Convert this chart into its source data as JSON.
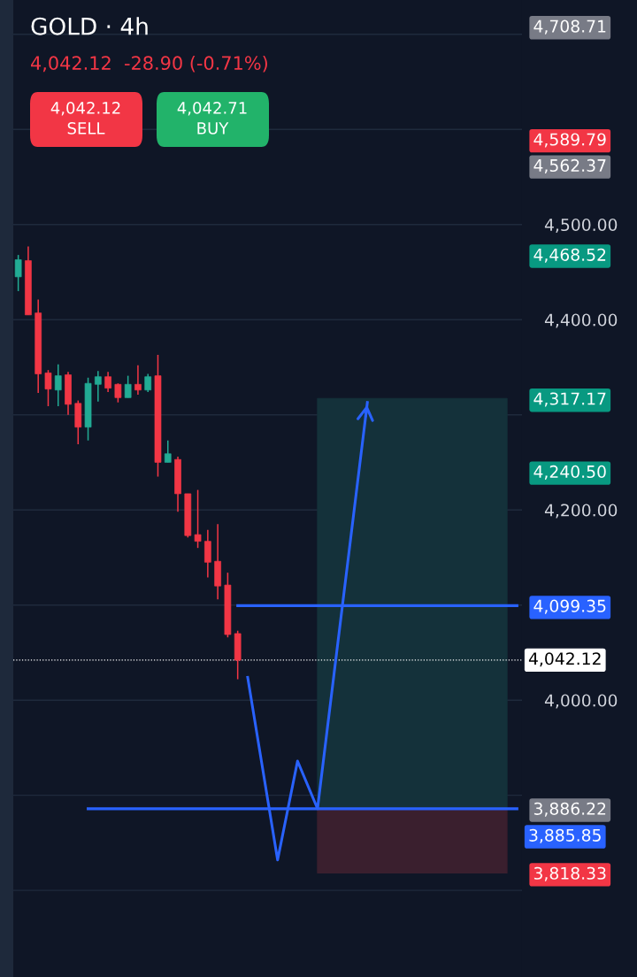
{
  "chart_data": {
    "type": "candlestick",
    "title": "GOLD · 4h",
    "subtitle": "4,042.12  -28.90 (-0.71%)",
    "annotations": [
      "4,042.12\nSELL",
      "4,042.71\nBUY",
      "3,885.85"
    ],
    "categories": [
      null,
      null,
      null,
      null,
      null,
      null,
      null,
      null,
      null,
      null,
      null,
      null,
      null,
      null,
      null,
      null,
      null,
      null,
      null,
      null,
      null,
      null,
      null,
      null,
      null,
      null,
      null,
      null,
      null,
      null,
      null,
      null,
      null,
      null,
      null,
      null,
      null,
      null,
      null,
      null,
      null,
      null,
      null,
      null,
      null,
      null,
      null,
      null,
      null,
      null,
      null
    ],
    "ohlc": [
      [
        4445,
        4468,
        4430,
        4463
      ],
      [
        4462,
        4477,
        4405,
        4405
      ],
      [
        4407,
        4421,
        4323,
        4343
      ],
      [
        4344,
        4347,
        4309,
        4327
      ],
      [
        4326,
        4353,
        4309,
        4341
      ],
      [
        4342,
        4345,
        4300,
        4311
      ],
      [
        4312,
        4315,
        4269,
        4287
      ],
      [
        4287,
        4339,
        4273,
        4333
      ],
      [
        4332,
        4346,
        4314,
        4340
      ],
      [
        4340,
        4345,
        4324,
        4328
      ],
      [
        4332,
        4333,
        4313,
        4318
      ],
      [
        4318,
        4341,
        4318,
        4332
      ],
      [
        4332,
        4352,
        4321,
        4326
      ],
      [
        4326,
        4343,
        4324,
        4340
      ],
      [
        4341,
        4363,
        4235,
        4250
      ],
      [
        4250,
        4273,
        4250,
        4259
      ],
      [
        4253,
        4256,
        4198,
        4217
      ],
      [
        4217,
        4217,
        4171,
        4173
      ],
      [
        4174,
        4221,
        4160,
        4167
      ],
      [
        4167,
        4179,
        4129,
        4145
      ],
      [
        4146,
        4185,
        4106,
        4120
      ],
      [
        4121,
        4134,
        4066,
        4069
      ],
      [
        4070,
        4073,
        4022,
        4042
      ],
      null,
      null,
      null,
      null,
      null,
      null,
      null,
      null,
      null,
      null,
      null,
      null,
      null,
      null,
      null,
      null,
      null,
      null,
      null,
      null,
      null,
      null,
      null,
      null,
      null,
      null,
      null,
      null
    ],
    "colors": [
      "#22ab94",
      "#f23645",
      "#f23645",
      "#f23645",
      "#22ab94",
      "#f23645",
      "#f23645",
      "#22ab94",
      "#22ab94",
      "#f23645",
      "#f23645",
      "#22ab94",
      "#f23645",
      "#22ab94",
      "#f23645",
      "#22ab94",
      "#f23645",
      "#f23645",
      "#f23645",
      "#f23645",
      "#f23645",
      "#f23645",
      "#f23645",
      null,
      null,
      null,
      null,
      null,
      null,
      null,
      null,
      null,
      null,
      null,
      null,
      null,
      null,
      null,
      null,
      null,
      null,
      null,
      null,
      null,
      null,
      null,
      null,
      null,
      null,
      null,
      null
    ],
    "series": [
      {
        "type": "line",
        "color": "#14313a",
        "values": [
          null,
          null,
          null,
          null,
          null,
          null,
          null,
          null,
          null,
          null,
          null,
          null,
          null,
          null,
          null,
          null,
          null,
          null,
          null,
          null,
          null,
          null,
          null,
          null,
          null,
          null,
          null,
          null,
          null,
          null,
          null,
          null,
          null,
          null,
          null,
          null,
          null,
          null,
          null,
          null,
          null,
          null,
          null,
          null,
          null,
          null,
          null,
          null,
          null,
          null,
          null
        ],
        "upper": [
          null,
          null,
          null,
          null,
          null,
          null,
          null,
          null,
          null,
          null,
          null,
          null,
          null,
          null,
          null,
          null,
          null,
          null,
          null,
          null,
          null,
          null,
          null,
          null,
          null,
          null,
          null,
          null,
          null,
          null,
          4317.17,
          4317.17,
          4317.17,
          4317.17,
          4317.17,
          4317.17,
          4317.17,
          4317.17,
          4317.17,
          4317.17,
          4317.17,
          4317.17,
          4317.17,
          4317.17,
          4317.17,
          4317.17,
          4317.17,
          4317.17,
          4317.17,
          4317.17,
          null
        ],
        "lower": [
          null,
          null,
          null,
          null,
          null,
          null,
          null,
          null,
          null,
          null,
          null,
          null,
          null,
          null,
          null,
          null,
          null,
          null,
          null,
          null,
          null,
          null,
          null,
          null,
          null,
          null,
          null,
          null,
          null,
          null,
          3886.22,
          3886.22,
          3886.22,
          3886.22,
          3886.22,
          3886.22,
          3886.22,
          3886.22,
          3886.22,
          3886.22,
          3886.22,
          3886.22,
          3886.22,
          3886.22,
          3886.22,
          3886.22,
          3886.22,
          3886.22,
          3886.22,
          3886.22,
          null
        ]
      },
      {
        "type": "line",
        "color": "#3a1f2e",
        "values": [
          null,
          null,
          null,
          null,
          null,
          null,
          null,
          null,
          null,
          null,
          null,
          null,
          null,
          null,
          null,
          null,
          null,
          null,
          null,
          null,
          null,
          null,
          null,
          null,
          null,
          null,
          null,
          null,
          null,
          null,
          null,
          null,
          null,
          null,
          null,
          null,
          null,
          null,
          null,
          null,
          null,
          null,
          null,
          null,
          null,
          null,
          null,
          null,
          null,
          null,
          null
        ],
        "upper": [
          null,
          null,
          null,
          null,
          null,
          null,
          null,
          null,
          null,
          null,
          null,
          null,
          null,
          null,
          null,
          null,
          null,
          null,
          null,
          null,
          null,
          null,
          null,
          null,
          null,
          null,
          null,
          null,
          null,
          null,
          3886.22,
          3886.22,
          3886.22,
          3886.22,
          3886.22,
          3886.22,
          3886.22,
          3886.22,
          3886.22,
          3886.22,
          3886.22,
          3886.22,
          3886.22,
          3886.22,
          3886.22,
          3886.22,
          3886.22,
          3886.22,
          3886.22,
          3886.22,
          null
        ],
        "lower": [
          null,
          null,
          null,
          null,
          null,
          null,
          null,
          null,
          null,
          null,
          null,
          null,
          null,
          null,
          null,
          null,
          null,
          null,
          null,
          null,
          null,
          null,
          null,
          null,
          null,
          null,
          null,
          null,
          null,
          null,
          3818.33,
          3818.33,
          3818.33,
          3818.33,
          3818.33,
          3818.33,
          3818.33,
          3818.33,
          3818.33,
          3818.33,
          3818.33,
          3818.33,
          3818.33,
          3818.33,
          3818.33,
          3818.33,
          3818.33,
          3818.33,
          3818.33,
          3818.33,
          null
        ]
      },
      {
        "type": "line",
        "color": "#2962ff",
        "values": [
          null,
          null,
          null,
          null,
          null,
          null,
          null,
          null,
          null,
          null,
          null,
          null,
          null,
          null,
          null,
          null,
          null,
          null,
          null,
          null,
          null,
          null,
          4099.35,
          4099.35,
          4099.35,
          4099.35,
          4099.35,
          4099.35,
          4099.35,
          4099.35,
          4099.35,
          4099.35,
          4099.35,
          4099.35,
          4099.35,
          4099.35,
          4099.35,
          4099.35,
          4099.35,
          4099.35,
          4099.35,
          4099.35,
          4099.35,
          4099.35,
          4099.35,
          4099.35,
          4099.35,
          4099.35,
          4099.35,
          4099.35,
          4099.35
        ]
      },
      {
        "type": "line",
        "color": "#2962ff",
        "values": [
          null,
          null,
          null,
          null,
          null,
          null,
          null,
          3885.85,
          3885.85,
          3885.85,
          3885.85,
          3885.85,
          3885.85,
          3885.85,
          3885.85,
          3885.85,
          3885.85,
          3885.85,
          3885.85,
          3885.85,
          3885.85,
          3885.85,
          3885.85,
          3885.85,
          3885.85,
          3885.85,
          3885.85,
          3885.85,
          3885.85,
          3885.85,
          3885.85,
          3885.85,
          3885.85,
          3885.85,
          3885.85,
          3885.85,
          3885.85,
          3885.85,
          3885.85,
          3885.85,
          3885.85,
          3885.85,
          3885.85,
          3885.85,
          3885.85,
          3885.85,
          3885.85,
          3885.85,
          3885.85,
          3885.85,
          3885.85
        ]
      },
      {
        "type": "line",
        "color": "#2962ff",
        "values": [
          null,
          null,
          null,
          null,
          null,
          null,
          null,
          null,
          null,
          null,
          null,
          null,
          null,
          null,
          null,
          null,
          null,
          null,
          null,
          null,
          null,
          null,
          null,
          4024,
          null,
          null,
          3832,
          null,
          3936,
          null,
          3886,
          null,
          null,
          null,
          null,
          4313,
          null,
          null,
          null,
          null,
          null,
          null,
          null,
          null,
          null,
          null,
          null,
          null,
          null,
          null,
          null
        ]
      }
    ],
    "ylim": [
      3709,
      4736
    ],
    "yticks": [
      {
        "value": 3800,
        "label": null
      },
      {
        "value": 3900,
        "label": null
      },
      {
        "value": 4000,
        "label": "4,000.00"
      },
      {
        "value": 4100,
        "label": null
      },
      {
        "value": 4200,
        "label": "4,200.00"
      },
      {
        "value": 4300,
        "label": null
      },
      {
        "value": 4400,
        "label": "4,400.00"
      },
      {
        "value": 4500,
        "label": "4,500.00"
      },
      {
        "value": 4600,
        "label": null
      },
      {
        "value": 4700,
        "label": null
      }
    ],
    "y2lim": [
      3709,
      4736
    ],
    "y2ticks": [
      {
        "value": 4708.71,
        "label": "4,708.71"
      },
      {
        "value": 4589.79,
        "label": "4,589.79"
      },
      {
        "value": 4562.37,
        "label": "4,562.37"
      },
      {
        "value": 4468.52,
        "label": "4,468.52"
      },
      {
        "value": 4317.17,
        "label": "4,317.17"
      },
      {
        "value": 4240.5,
        "label": "4,240.50"
      },
      {
        "value": 4099.35,
        "label": "4,099.35"
      },
      {
        "value": 3886.22,
        "label": "3,886.22"
      },
      {
        "value": 3818.33,
        "label": "3,818.33"
      }
    ],
    "grid": "y",
    "ref_lines": [
      {
        "axis": "y",
        "value": 4042.12,
        "label": "4,042.12",
        "color": "#ffffff",
        "line_style": "dotted"
      }
    ]
  }
}
